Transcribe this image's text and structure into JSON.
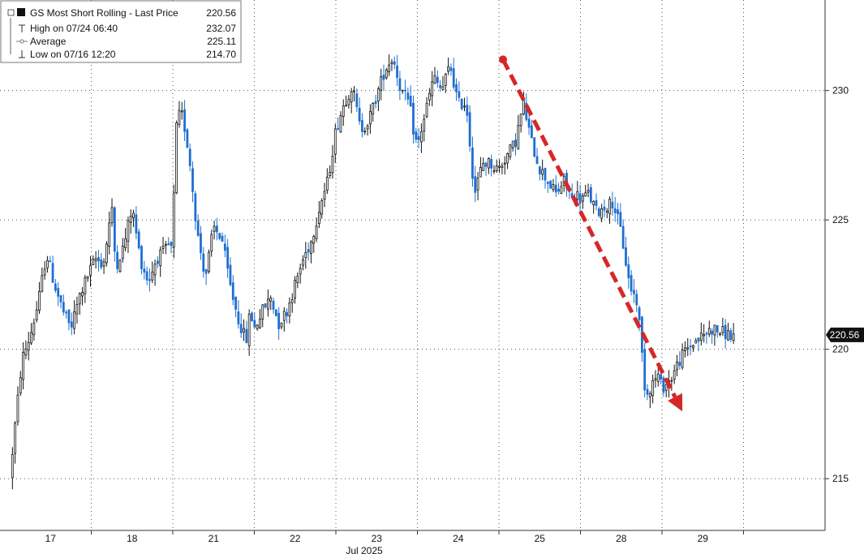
{
  "chart_data": {
    "type": "candlestick",
    "title": "GS Most Short Rolling - Last Price",
    "last_price": "220.56",
    "legend": {
      "items": [
        {
          "label": "GS Most Short Rolling - Last Price",
          "value": "220.56",
          "icon": "square-icon"
        },
        {
          "label": "High on 07/24 06:40",
          "value": "232.07",
          "icon": "high-marker-icon"
        },
        {
          "label": "Average",
          "value": "225.11",
          "icon": "average-line-icon"
        },
        {
          "label": "Low on 07/16 12:20",
          "value": "214.70",
          "icon": "low-marker-icon"
        }
      ],
      "placement": "top-left"
    },
    "y_axis": {
      "ylim": [
        213.0,
        233.5
      ],
      "ticks": [
        215,
        220,
        225,
        230
      ],
      "tick_labels": [
        "215",
        "220",
        "225",
        "230"
      ],
      "side": "right"
    },
    "x_axis": {
      "day_labels": [
        "17",
        "18",
        "21",
        "22",
        "23",
        "24",
        "25",
        "28",
        "29"
      ],
      "month_label": "Jul 2025",
      "days": 10
    },
    "grid": true,
    "series": [
      {
        "x": [
          0,
          0.08,
          0.15,
          0.25,
          0.35,
          0.45,
          0.55,
          0.65,
          0.75,
          0.85,
          0.95,
          1.05,
          1.15,
          1.25,
          1.3,
          1.4,
          1.5,
          1.6,
          1.7,
          1.8,
          1.9,
          1.95,
          2.0,
          2.02,
          2.05,
          2.1,
          2.15,
          2.2,
          2.3,
          2.4,
          2.5,
          2.6,
          2.7,
          2.8,
          2.9,
          2.95,
          3.0,
          3.1,
          3.2,
          3.3,
          3.4,
          3.5,
          3.6,
          3.7,
          3.8,
          3.9,
          3.95,
          4.0,
          4.1,
          4.2,
          4.3,
          4.4,
          4.5,
          4.6,
          4.7,
          4.8,
          4.9,
          4.95,
          5.0,
          5.1,
          5.2,
          5.3,
          5.4,
          5.5,
          5.6,
          5.7,
          5.8,
          5.9,
          5.95,
          6.0,
          6.1,
          6.2,
          6.3,
          6.4,
          6.5,
          6.6,
          6.7,
          6.8,
          6.9,
          6.95,
          7.0,
          7.1,
          7.2,
          7.3,
          7.4,
          7.5,
          7.6,
          7.7,
          7.8,
          7.9,
          7.95,
          8.0,
          8.1,
          8.2,
          8.3,
          8.4,
          8.5,
          8.6,
          8.7,
          8.8,
          8.85,
          8.9
        ],
        "y": [
          215.0,
          217.5,
          219.6,
          220.5,
          221.8,
          223.7,
          222.5,
          221.5,
          220.8,
          222.0,
          222.8,
          223.5,
          223.3,
          225.5,
          223.2,
          224.0,
          225.5,
          223.5,
          222.6,
          223.5,
          223.8,
          224.0,
          223.8,
          227.0,
          228.8,
          229.2,
          228.5,
          227.5,
          224.5,
          222.8,
          224.7,
          224.3,
          222.5,
          221.2,
          220.3,
          221.5,
          220.8,
          221.5,
          222.0,
          221.0,
          221.5,
          222.5,
          223.5,
          224.2,
          225.5,
          226.5,
          227.5,
          228.5,
          229.5,
          230.2,
          228.5,
          228.8,
          229.8,
          230.8,
          231.3,
          230.0,
          229.5,
          228.5,
          227.8,
          229.2,
          230.5,
          230.0,
          231.0,
          229.5,
          229.5,
          226.0,
          227.2,
          227.2,
          227.0,
          227.0,
          227.5,
          228.0,
          229.5,
          228.0,
          227.0,
          226.5,
          226.0,
          226.5,
          225.8,
          226.0,
          225.8,
          226.0,
          225.3,
          225.5,
          225.7,
          224.5,
          222.5,
          221.8,
          218.2,
          218.8,
          219.0,
          218.5,
          218.8,
          219.5,
          220.0,
          220.3,
          220.5,
          220.8,
          220.7,
          220.6,
          220.5,
          220.56
        ]
      }
    ],
    "annotations": [
      {
        "type": "arrow",
        "style": "dashed",
        "color": "#d62728",
        "from": [
          6.05,
          231.2
        ],
        "to": [
          8.25,
          217.6
        ]
      }
    ],
    "colors": {
      "up": "#111111",
      "down": "#1f6fd1",
      "grid": "#555555",
      "arrow": "#d62728",
      "last_price_badge": "#111111"
    }
  }
}
